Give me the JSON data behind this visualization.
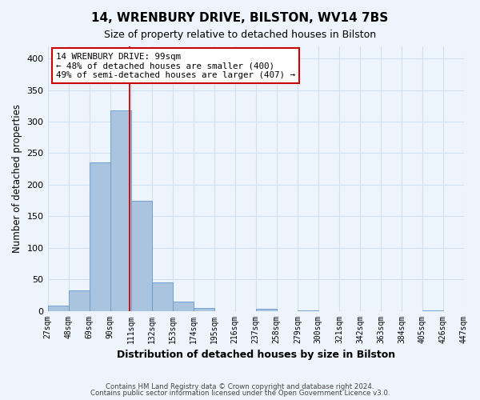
{
  "title_line1": "14, WRENBURY DRIVE, BILSTON, WV14 7BS",
  "title_line2": "Size of property relative to detached houses in Bilston",
  "xlabel": "Distribution of detached houses by size in Bilston",
  "ylabel": "Number of detached properties",
  "bin_labels": [
    "27sqm",
    "48sqm",
    "69sqm",
    "90sqm",
    "111sqm",
    "132sqm",
    "153sqm",
    "174sqm",
    "195sqm",
    "216sqm",
    "237sqm",
    "258sqm",
    "279sqm",
    "300sqm",
    "321sqm",
    "342sqm",
    "363sqm",
    "384sqm",
    "405sqm",
    "426sqm",
    "447sqm"
  ],
  "bar_heights": [
    8,
    33,
    236,
    318,
    174,
    45,
    15,
    5,
    0,
    0,
    3,
    0,
    1,
    0,
    0,
    0,
    0,
    0,
    1,
    0
  ],
  "bar_color": "#aac4e0",
  "bar_edge_color": "#6699cc",
  "grid_color": "#d0e0ee",
  "background_color": "#eef4fb",
  "annotation_text": "14 WRENBURY DRIVE: 99sqm\n← 48% of detached houses are smaller (400)\n49% of semi-detached houses are larger (407) →",
  "annotation_box_color": "#ffffff",
  "annotation_box_edge": "#cc0000",
  "red_line_color": "#cc0000",
  "footer_line1": "Contains HM Land Registry data © Crown copyright and database right 2024.",
  "footer_line2": "Contains public sector information licensed under the Open Government Licence v3.0.",
  "ylim": [
    0,
    420
  ],
  "yticks": [
    0,
    50,
    100,
    150,
    200,
    250,
    300,
    350,
    400
  ]
}
